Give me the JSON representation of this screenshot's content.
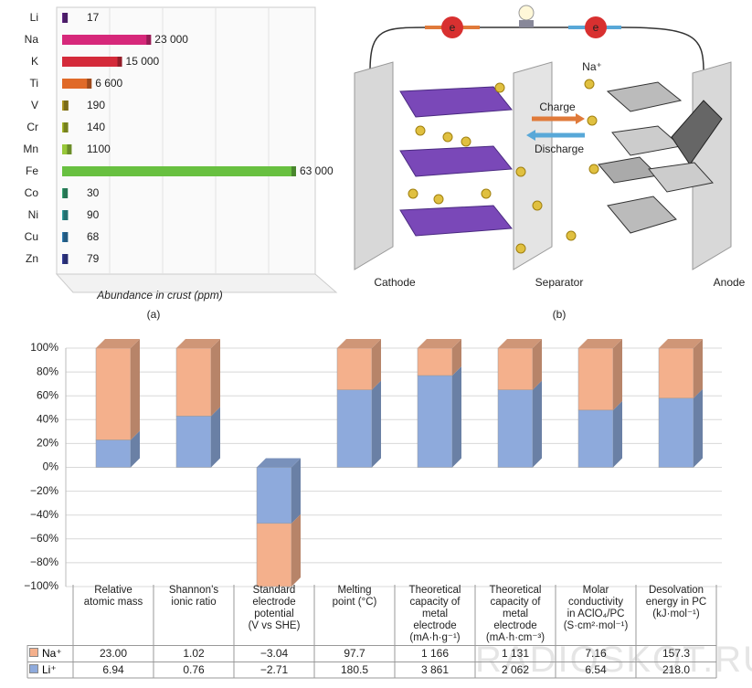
{
  "chart_data": [
    {
      "type": "hbar",
      "caption": "(a)",
      "x_label": "Abundance in crust (ppm)",
      "categories": [
        "Li",
        "Na",
        "K",
        "Ti",
        "V",
        "Cr",
        "Mn",
        "Fe",
        "Co",
        "Ni",
        "Cu",
        "Zn"
      ],
      "values": [
        17,
        23000,
        15000,
        6600,
        190,
        140,
        1100,
        63000,
        30,
        90,
        68,
        79
      ],
      "value_labels": [
        "17",
        "23 000",
        "15 000",
        "6 600",
        "190",
        "140",
        "1100",
        "63 000",
        "30",
        "90",
        "68",
        "79"
      ],
      "colors": [
        "#6a2a90",
        "#d6287a",
        "#d42a3a",
        "#e06a28",
        "#b09a22",
        "#a8b82a",
        "#98c83a",
        "#68c040",
        "#38a878",
        "#30a0a0",
        "#3080b8",
        "#3840a0"
      ]
    },
    {
      "type": "stacked_bar",
      "ylim": [
        -100,
        100
      ],
      "grid": true,
      "yticks": [
        {
          "value": 100,
          "label": "100%"
        },
        {
          "value": 80,
          "label": "80%"
        },
        {
          "value": 60,
          "label": "60%"
        },
        {
          "value": 40,
          "label": "40%"
        },
        {
          "value": 20,
          "label": "20%"
        },
        {
          "value": 0,
          "label": "0%"
        },
        {
          "value": -20,
          "label": "−20%"
        },
        {
          "value": -40,
          "label": "−40%"
        },
        {
          "value": -60,
          "label": "−60%"
        },
        {
          "value": -80,
          "label": "−80%"
        },
        {
          "value": -100,
          "label": "−100%"
        }
      ],
      "categories": [
        "Relative\natomic mass",
        "Shannon’s\nionic ratio",
        "Standard\nelectrode\npotential\n(V vs SHE)",
        "Melting\npoint (°C)",
        "Theoretical\ncapacity of\nmetal\nelectrode\n(mA·h·g⁻¹)",
        "Theoretical\ncapacity of\nmetal\nelectrode\n(mA·h·cm⁻³)",
        "Molar\nconductivity\nin AClO₄/PC\n(S·cm²·mol⁻¹)",
        "Desolvation\nenergy in PC\n(kJ·mol⁻¹)"
      ],
      "series": [
        {
          "name": "Li⁺",
          "color": "#8eaadc",
          "values": [
            23,
            43,
            -47,
            65,
            77,
            65,
            48,
            58
          ]
        },
        {
          "name": "Na⁺",
          "color": "#f4b08c",
          "values": [
            77,
            57,
            -53,
            35,
            23,
            35,
            52,
            42
          ]
        }
      ]
    }
  ],
  "diagram": {
    "caption": "(b)",
    "cathode": "Cathode",
    "separator": "Separator",
    "anode": "Anode",
    "charge": "Charge",
    "discharge": "Discharge",
    "ion": "Na⁺",
    "electron_left": "e",
    "electron_right": "e"
  },
  "table": {
    "rows": [
      [
        "23.00",
        "1.02",
        "−3.04",
        "97.7",
        "1 166",
        "1 131",
        "7.16",
        "157.3"
      ],
      [
        "6.94",
        "0.76",
        "−2.71",
        "180.5",
        "3 861",
        "2 062",
        "6.54",
        "218.0"
      ]
    ]
  },
  "watermark": "RADIOSKOT.RU"
}
